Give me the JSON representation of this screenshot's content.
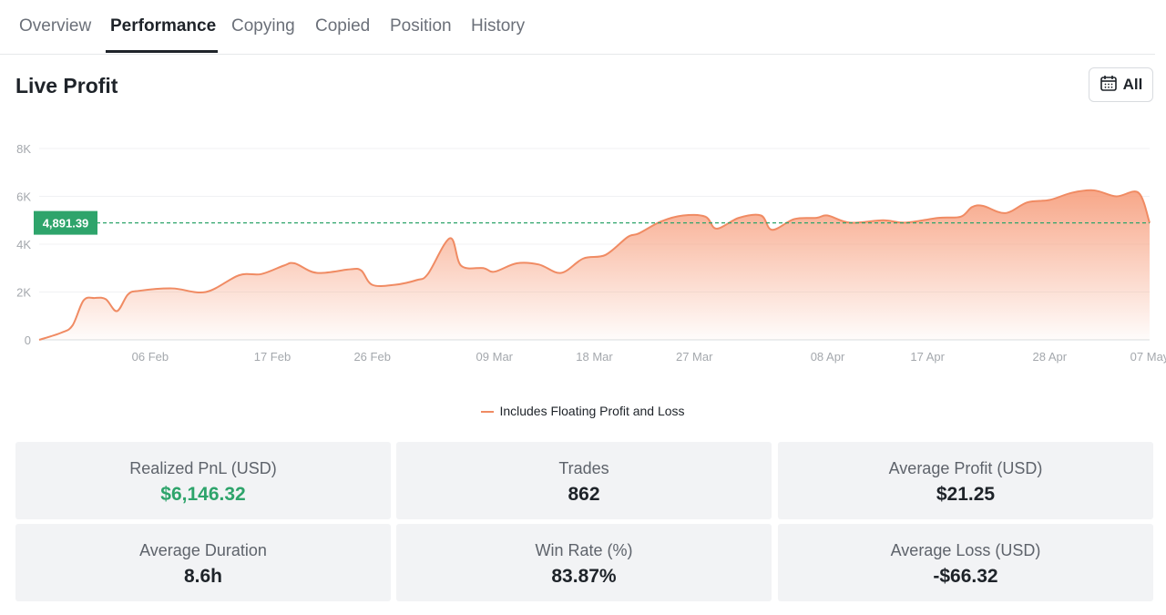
{
  "tabs": [
    {
      "label": "Overview",
      "active": false
    },
    {
      "label": "Performance",
      "active": true
    },
    {
      "label": "Copying",
      "active": false
    },
    {
      "label": "Copied",
      "active": false
    },
    {
      "label": "Position",
      "active": false
    },
    {
      "label": "History",
      "active": false
    }
  ],
  "header": {
    "title": "Live Profit",
    "range_label": "All",
    "range_icon": "calendar-icon"
  },
  "colors": {
    "line": "#f08b63",
    "fill_top": "#f7a282",
    "marker": "#2ea46b",
    "positive": "#2ea46b",
    "text": "#1e2329"
  },
  "chart_data": {
    "type": "area",
    "ylim": [
      0,
      8000
    ],
    "yticks": [
      0,
      2000,
      4000,
      6000,
      8000
    ],
    "ytick_labels": [
      "0",
      "2K",
      "4K",
      "6K",
      "8K"
    ],
    "xlim": [
      "2025-01-27",
      "2025-05-07"
    ],
    "xticks": [
      "2025-02-06",
      "2025-02-17",
      "2025-02-26",
      "2025-03-09",
      "2025-03-18",
      "2025-03-27",
      "2025-04-08",
      "2025-04-17",
      "2025-04-28",
      "2025-05-07"
    ],
    "xtick_labels": [
      "06 Feb",
      "17 Feb",
      "26 Feb",
      "09 Mar",
      "18 Mar",
      "27 Mar",
      "08 Apr",
      "17 Apr",
      "28 Apr",
      "07 May"
    ],
    "reference_line": {
      "value": 4891.39,
      "label": "4,891.39"
    },
    "legend": "Includes Floating Profit and Loss",
    "grid": true,
    "points": [
      [
        "2025-01-27",
        0
      ],
      [
        "2025-01-29",
        300
      ],
      [
        "2025-01-30",
        600
      ],
      [
        "2025-01-31",
        1650
      ],
      [
        "2025-02-01",
        1750
      ],
      [
        "2025-02-02",
        1700
      ],
      [
        "2025-02-03",
        1200
      ],
      [
        "2025-02-04",
        1900
      ],
      [
        "2025-02-05",
        2050
      ],
      [
        "2025-02-08",
        2150
      ],
      [
        "2025-02-11",
        2000
      ],
      [
        "2025-02-14",
        2700
      ],
      [
        "2025-02-16",
        2750
      ],
      [
        "2025-02-18",
        3100
      ],
      [
        "2025-02-19",
        3200
      ],
      [
        "2025-02-21",
        2800
      ],
      [
        "2025-02-24",
        2950
      ],
      [
        "2025-02-25",
        2900
      ],
      [
        "2025-02-26",
        2300
      ],
      [
        "2025-02-28",
        2300
      ],
      [
        "2025-03-02",
        2500
      ],
      [
        "2025-03-03",
        2750
      ],
      [
        "2025-03-05",
        4250
      ],
      [
        "2025-03-06",
        3100
      ],
      [
        "2025-03-08",
        3000
      ],
      [
        "2025-03-09",
        2850
      ],
      [
        "2025-03-11",
        3200
      ],
      [
        "2025-03-13",
        3150
      ],
      [
        "2025-03-15",
        2800
      ],
      [
        "2025-03-17",
        3400
      ],
      [
        "2025-03-19",
        3550
      ],
      [
        "2025-03-21",
        4300
      ],
      [
        "2025-03-22",
        4450
      ],
      [
        "2025-03-24",
        4950
      ],
      [
        "2025-03-26",
        5200
      ],
      [
        "2025-03-28",
        5150
      ],
      [
        "2025-03-29",
        4650
      ],
      [
        "2025-03-31",
        5100
      ],
      [
        "2025-04-02",
        5200
      ],
      [
        "2025-04-03",
        4600
      ],
      [
        "2025-04-05",
        5050
      ],
      [
        "2025-04-07",
        5100
      ],
      [
        "2025-04-08",
        5200
      ],
      [
        "2025-04-10",
        4900
      ],
      [
        "2025-04-13",
        5000
      ],
      [
        "2025-04-15",
        4900
      ],
      [
        "2025-04-18",
        5100
      ],
      [
        "2025-04-20",
        5150
      ],
      [
        "2025-04-21",
        5550
      ],
      [
        "2025-04-22",
        5600
      ],
      [
        "2025-04-24",
        5300
      ],
      [
        "2025-04-26",
        5750
      ],
      [
        "2025-04-28",
        5850
      ],
      [
        "2025-04-30",
        6150
      ],
      [
        "2025-05-02",
        6250
      ],
      [
        "2025-05-04",
        6000
      ],
      [
        "2025-05-06",
        6150
      ],
      [
        "2025-05-07",
        4891
      ]
    ]
  },
  "stats": [
    {
      "label": "Realized PnL (USD)",
      "value": "$6,146.32",
      "positive": true
    },
    {
      "label": "Trades",
      "value": "862",
      "positive": false
    },
    {
      "label": "Average Profit (USD)",
      "value": "$21.25",
      "positive": false
    },
    {
      "label": "Average Duration",
      "value": "8.6h",
      "positive": false
    },
    {
      "label": "Win Rate (%)",
      "value": "83.87%",
      "positive": false
    },
    {
      "label": "Average Loss (USD)",
      "value": "-$66.32",
      "positive": false
    }
  ]
}
